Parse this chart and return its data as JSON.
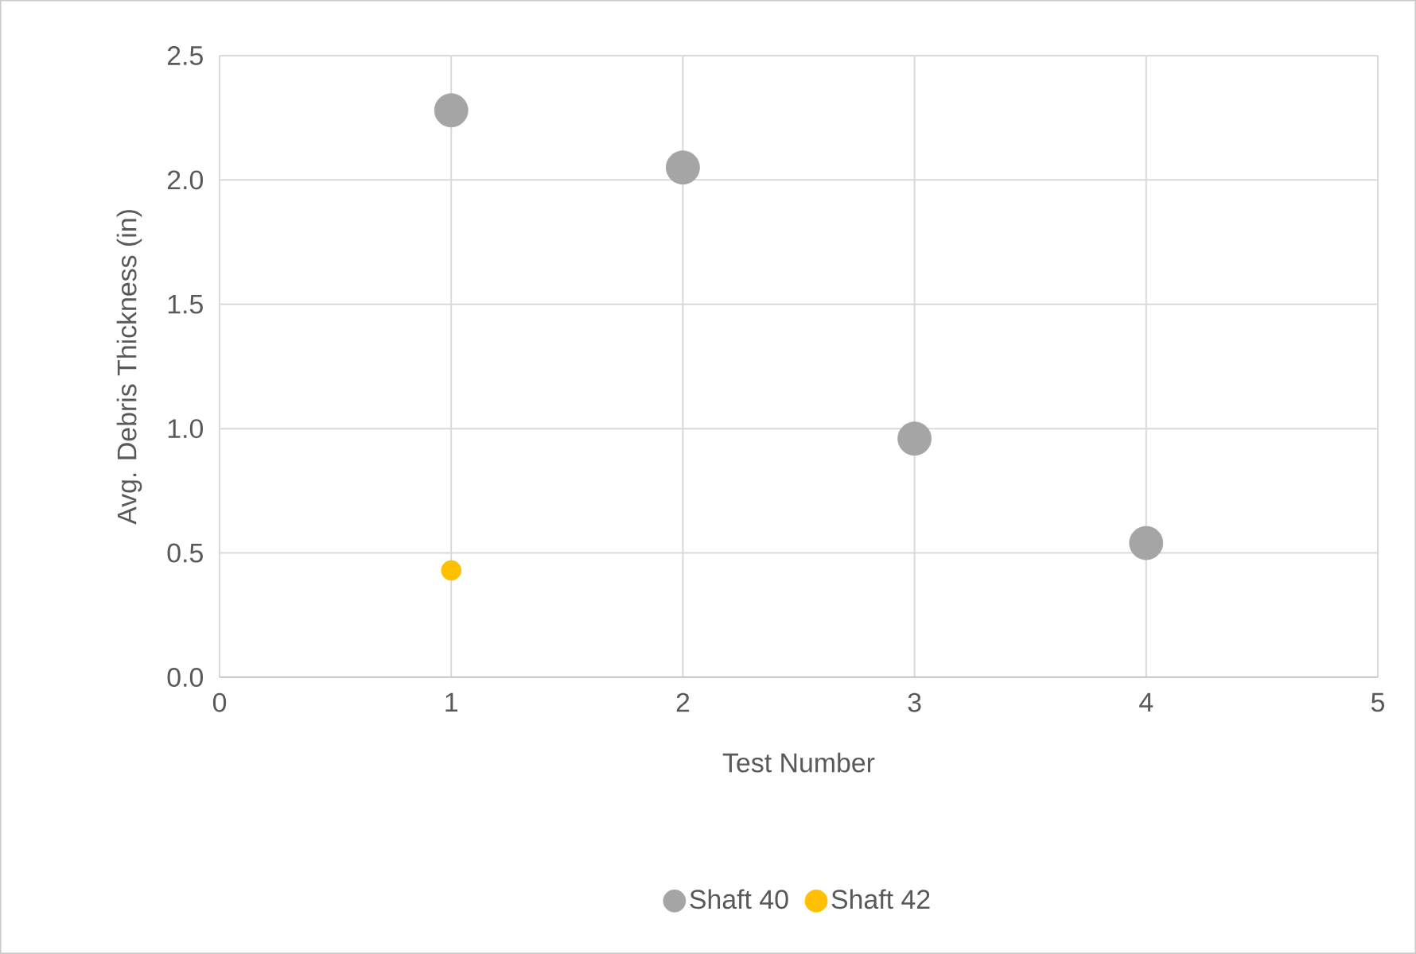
{
  "chart_data": {
    "type": "scatter",
    "xlabel": "Test Number",
    "ylabel": "Avg. Debris Thickness (in)",
    "xlim": [
      0,
      5
    ],
    "xticks": [
      0,
      1,
      2,
      3,
      4,
      5
    ],
    "ylim": [
      0,
      2.5
    ],
    "yticks": [
      {
        "value": 0,
        "label": "0.0"
      },
      {
        "value": 0.5,
        "label": "0.5"
      },
      {
        "value": 1,
        "label": "1.0"
      },
      {
        "value": 1.5,
        "label": "1.5"
      },
      {
        "value": 2,
        "label": "2.0"
      },
      {
        "value": 2.5,
        "label": "2.5"
      }
    ],
    "grid": true,
    "legend": "bottom",
    "series": [
      {
        "name": "Shaft 40",
        "color": "#a5a5a5",
        "x": [
          1,
          2,
          3,
          4
        ],
        "values": [
          2.28,
          2.05,
          0.96,
          0.54
        ]
      },
      {
        "name": "Shaft 42",
        "color": "#ffc000",
        "x": [
          1
        ],
        "values": [
          0.43
        ]
      }
    ]
  }
}
